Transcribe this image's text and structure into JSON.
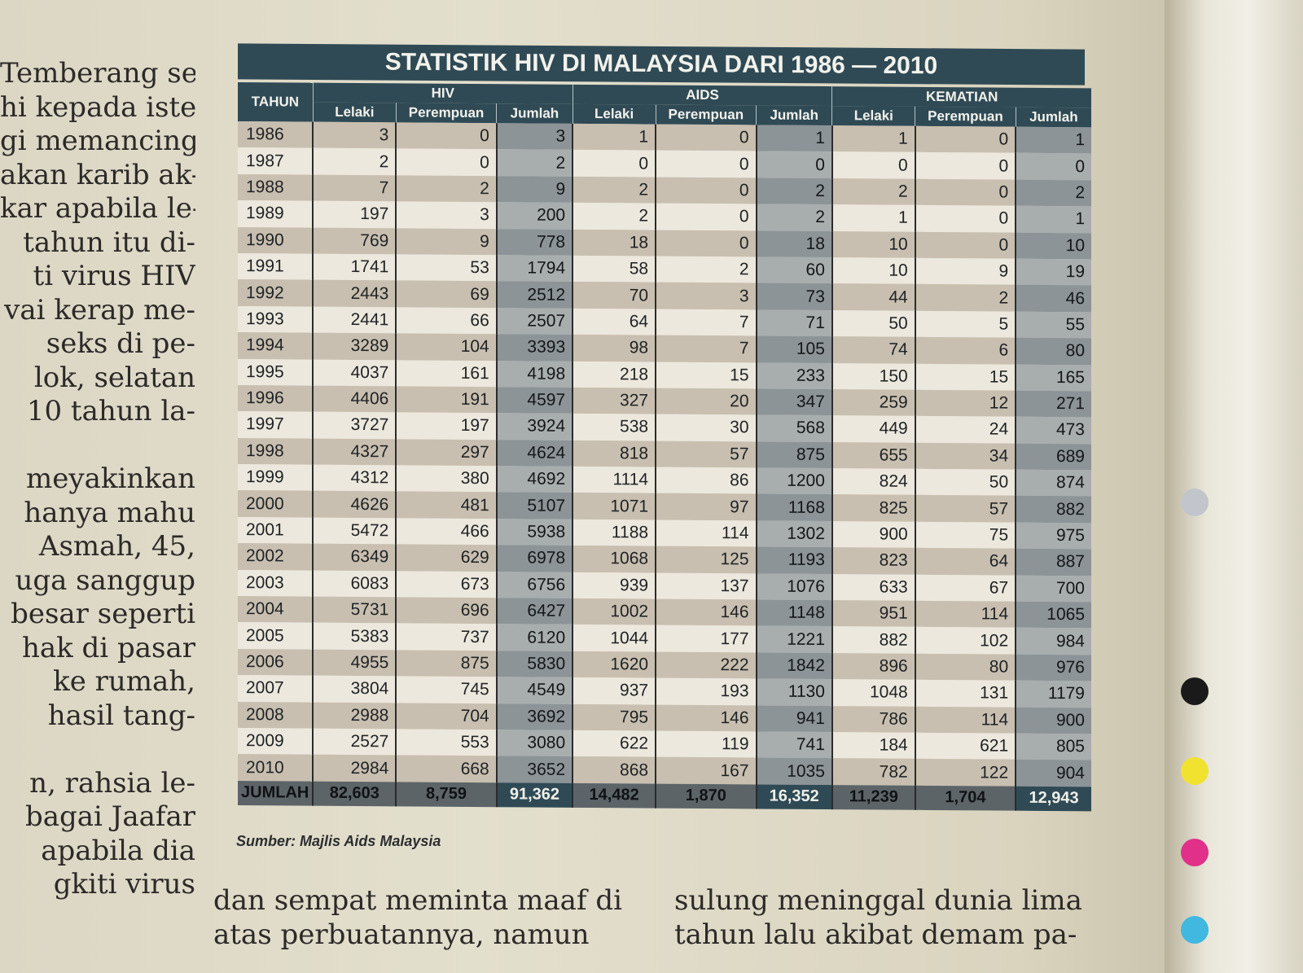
{
  "left_column": [
    "Temberang se-",
    "hi kepada isteri",
    "gi memancing",
    "akan karib ak-",
    "kar apabila le-",
    "tahun itu di-",
    "ti virus HIV",
    "vai kerap me-",
    "seks di pe-",
    "lok, selatan",
    "10 tahun la-",
    "",
    "meyakinkan",
    "hanya mahu",
    "Asmah, 45,",
    "uga sanggup",
    "besar seperti",
    "hak di pasar",
    "ke rumah,",
    "hasil tang-",
    "",
    "n, rahsia le-",
    "bagai Jaafar",
    "apabila dia",
    "gkiti virus"
  ],
  "bottom_text": {
    "col2_line1": "dan sempat meminta maaf di",
    "col2_line2": "atas perbuatannya, namun",
    "col3_line1": "sulung meninggal dunia lima",
    "col3_line2": "tahun lalu akibat demam pa-"
  },
  "table": {
    "title": "STATISTIK HIV DI MALAYSIA DARI 1986 — 2010",
    "year_header": "TAHUN",
    "groups": [
      "HIV",
      "AIDS",
      "KEMATIAN"
    ],
    "subheaders": [
      "Lelaki",
      "Perempuan",
      "Jumlah"
    ],
    "rows": [
      [
        "1986",
        "3",
        "0",
        "3",
        "1",
        "0",
        "1",
        "1",
        "0",
        "1"
      ],
      [
        "1987",
        "2",
        "0",
        "2",
        "0",
        "0",
        "0",
        "0",
        "0",
        "0"
      ],
      [
        "1988",
        "7",
        "2",
        "9",
        "2",
        "0",
        "2",
        "2",
        "0",
        "2"
      ],
      [
        "1989",
        "197",
        "3",
        "200",
        "2",
        "0",
        "2",
        "1",
        "0",
        "1"
      ],
      [
        "1990",
        "769",
        "9",
        "778",
        "18",
        "0",
        "18",
        "10",
        "0",
        "10"
      ],
      [
        "1991",
        "1741",
        "53",
        "1794",
        "58",
        "2",
        "60",
        "10",
        "9",
        "19"
      ],
      [
        "1992",
        "2443",
        "69",
        "2512",
        "70",
        "3",
        "73",
        "44",
        "2",
        "46"
      ],
      [
        "1993",
        "2441",
        "66",
        "2507",
        "64",
        "7",
        "71",
        "50",
        "5",
        "55"
      ],
      [
        "1994",
        "3289",
        "104",
        "3393",
        "98",
        "7",
        "105",
        "74",
        "6",
        "80"
      ],
      [
        "1995",
        "4037",
        "161",
        "4198",
        "218",
        "15",
        "233",
        "150",
        "15",
        "165"
      ],
      [
        "1996",
        "4406",
        "191",
        "4597",
        "327",
        "20",
        "347",
        "259",
        "12",
        "271"
      ],
      [
        "1997",
        "3727",
        "197",
        "3924",
        "538",
        "30",
        "568",
        "449",
        "24",
        "473"
      ],
      [
        "1998",
        "4327",
        "297",
        "4624",
        "818",
        "57",
        "875",
        "655",
        "34",
        "689"
      ],
      [
        "1999",
        "4312",
        "380",
        "4692",
        "1114",
        "86",
        "1200",
        "824",
        "50",
        "874"
      ],
      [
        "2000",
        "4626",
        "481",
        "5107",
        "1071",
        "97",
        "1168",
        "825",
        "57",
        "882"
      ],
      [
        "2001",
        "5472",
        "466",
        "5938",
        "1188",
        "114",
        "1302",
        "900",
        "75",
        "975"
      ],
      [
        "2002",
        "6349",
        "629",
        "6978",
        "1068",
        "125",
        "1193",
        "823",
        "64",
        "887"
      ],
      [
        "2003",
        "6083",
        "673",
        "6756",
        "939",
        "137",
        "1076",
        "633",
        "67",
        "700"
      ],
      [
        "2004",
        "5731",
        "696",
        "6427",
        "1002",
        "146",
        "1148",
        "951",
        "114",
        "1065"
      ],
      [
        "2005",
        "5383",
        "737",
        "6120",
        "1044",
        "177",
        "1221",
        "882",
        "102",
        "984"
      ],
      [
        "2006",
        "4955",
        "875",
        "5830",
        "1620",
        "222",
        "1842",
        "896",
        "80",
        "976"
      ],
      [
        "2007",
        "3804",
        "745",
        "4549",
        "937",
        "193",
        "1130",
        "1048",
        "131",
        "1179"
      ],
      [
        "2008",
        "2988",
        "704",
        "3692",
        "795",
        "146",
        "941",
        "786",
        "114",
        "900"
      ],
      [
        "2009",
        "2527",
        "553",
        "3080",
        "622",
        "119",
        "741",
        "184",
        "621",
        "805"
      ],
      [
        "2010",
        "2984",
        "668",
        "3652",
        "868",
        "167",
        "1035",
        "782",
        "122",
        "904"
      ]
    ],
    "total_label": "JUMLAH",
    "totals": [
      "82,603",
      "8,759",
      "91,362",
      "14,482",
      "1,870",
      "16,352",
      "11,239",
      "1,704",
      "12,943"
    ],
    "source": "Sumber: Majlis Aids Malaysia"
  },
  "colors": {
    "header": "#2f4a55",
    "stripe_dark": "#c8bfb0",
    "stripe_light": "#ece8dd"
  }
}
